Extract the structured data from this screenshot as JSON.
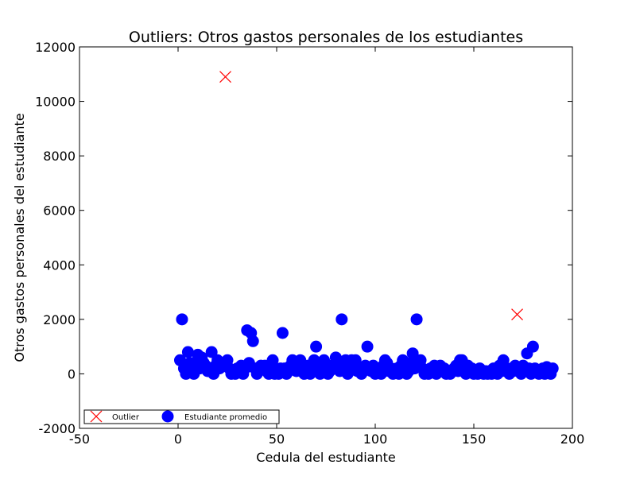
{
  "chart_data": {
    "type": "scatter",
    "title": "Outliers: Otros gastos personales de los estudiantes",
    "xlabel": "Cedula del estudiante",
    "ylabel": "Otros gastos personales del estudiante",
    "xlim": [
      -50,
      200
    ],
    "ylim": [
      -2000,
      12000
    ],
    "xticks": [
      -50,
      0,
      50,
      100,
      150,
      200
    ],
    "yticks": [
      -2000,
      0,
      2000,
      4000,
      6000,
      8000,
      10000,
      12000
    ],
    "grid": false,
    "legend_position": "bottom-left",
    "series": [
      {
        "name": "Outlier",
        "marker": "x",
        "color": "#ff0000",
        "points": [
          [
            24,
            10900
          ],
          [
            172,
            2180
          ]
        ]
      },
      {
        "name": "Estudiante promedio",
        "marker": "circle",
        "color": "#0000ff",
        "points": [
          [
            1,
            500
          ],
          [
            2,
            2000
          ],
          [
            3,
            200
          ],
          [
            4,
            0
          ],
          [
            5,
            800
          ],
          [
            6,
            400
          ],
          [
            7,
            100
          ],
          [
            8,
            0
          ],
          [
            9,
            300
          ],
          [
            10,
            700
          ],
          [
            11,
            200
          ],
          [
            12,
            600
          ],
          [
            13,
            400
          ],
          [
            14,
            300
          ],
          [
            15,
            100
          ],
          [
            16,
            200
          ],
          [
            17,
            800
          ],
          [
            18,
            0
          ],
          [
            19,
            300
          ],
          [
            20,
            500
          ],
          [
            21,
            200
          ],
          [
            22,
            400
          ],
          [
            23,
            300
          ],
          [
            25,
            500
          ],
          [
            26,
            200
          ],
          [
            27,
            0
          ],
          [
            28,
            100
          ],
          [
            29,
            0
          ],
          [
            30,
            200
          ],
          [
            31,
            100
          ],
          [
            32,
            300
          ],
          [
            33,
            0
          ],
          [
            34,
            200
          ],
          [
            35,
            1600
          ],
          [
            36,
            400
          ],
          [
            37,
            1500
          ],
          [
            38,
            1200
          ],
          [
            39,
            200
          ],
          [
            40,
            0
          ],
          [
            41,
            100
          ],
          [
            42,
            300
          ],
          [
            43,
            200
          ],
          [
            44,
            300
          ],
          [
            45,
            100
          ],
          [
            46,
            0
          ],
          [
            47,
            300
          ],
          [
            48,
            500
          ],
          [
            49,
            0
          ],
          [
            50,
            100
          ],
          [
            51,
            0
          ],
          [
            52,
            200
          ],
          [
            53,
            1500
          ],
          [
            54,
            200
          ],
          [
            55,
            0
          ],
          [
            56,
            100
          ],
          [
            57,
            300
          ],
          [
            58,
            500
          ],
          [
            59,
            200
          ],
          [
            60,
            100
          ],
          [
            61,
            300
          ],
          [
            62,
            500
          ],
          [
            63,
            200
          ],
          [
            64,
            0
          ],
          [
            65,
            100
          ],
          [
            66,
            300
          ],
          [
            67,
            0
          ],
          [
            68,
            200
          ],
          [
            69,
            500
          ],
          [
            70,
            1000
          ],
          [
            71,
            200
          ],
          [
            72,
            0
          ],
          [
            73,
            300
          ],
          [
            74,
            500
          ],
          [
            75,
            200
          ],
          [
            76,
            0
          ],
          [
            77,
            100
          ],
          [
            78,
            300
          ],
          [
            79,
            200
          ],
          [
            80,
            600
          ],
          [
            81,
            400
          ],
          [
            82,
            100
          ],
          [
            83,
            2000
          ],
          [
            84,
            300
          ],
          [
            85,
            500
          ],
          [
            86,
            0
          ],
          [
            87,
            100
          ],
          [
            88,
            500
          ],
          [
            89,
            200
          ],
          [
            90,
            500
          ],
          [
            91,
            100
          ],
          [
            92,
            200
          ],
          [
            93,
            0
          ],
          [
            94,
            100
          ],
          [
            95,
            300
          ],
          [
            96,
            1000
          ],
          [
            97,
            200
          ],
          [
            98,
            100
          ],
          [
            99,
            300
          ],
          [
            100,
            0
          ],
          [
            101,
            200
          ],
          [
            102,
            100
          ],
          [
            103,
            0
          ],
          [
            104,
            300
          ],
          [
            105,
            500
          ],
          [
            106,
            400
          ],
          [
            107,
            100
          ],
          [
            108,
            200
          ],
          [
            109,
            0
          ],
          [
            110,
            100
          ],
          [
            111,
            200
          ],
          [
            112,
            0
          ],
          [
            113,
            300
          ],
          [
            114,
            500
          ],
          [
            115,
            200
          ],
          [
            116,
            0
          ],
          [
            117,
            100
          ],
          [
            118,
            400
          ],
          [
            119,
            750
          ],
          [
            120,
            200
          ],
          [
            121,
            2000
          ],
          [
            122,
            300
          ],
          [
            123,
            500
          ],
          [
            124,
            200
          ],
          [
            125,
            0
          ],
          [
            126,
            100
          ],
          [
            127,
            0
          ],
          [
            128,
            200
          ],
          [
            129,
            100
          ],
          [
            130,
            300
          ],
          [
            131,
            0
          ],
          [
            132,
            200
          ],
          [
            133,
            300
          ],
          [
            134,
            100
          ],
          [
            135,
            200
          ],
          [
            136,
            0
          ],
          [
            137,
            100
          ],
          [
            138,
            0
          ],
          [
            139,
            100
          ],
          [
            140,
            200
          ],
          [
            141,
            300
          ],
          [
            142,
            100
          ],
          [
            143,
            500
          ],
          [
            144,
            500
          ],
          [
            145,
            200
          ],
          [
            146,
            0
          ],
          [
            147,
            300
          ],
          [
            148,
            100
          ],
          [
            149,
            200
          ],
          [
            150,
            0
          ],
          [
            151,
            100
          ],
          [
            152,
            0
          ],
          [
            153,
            200
          ],
          [
            154,
            100
          ],
          [
            155,
            0
          ],
          [
            156,
            100
          ],
          [
            157,
            0
          ],
          [
            158,
            100
          ],
          [
            159,
            0
          ],
          [
            160,
            200
          ],
          [
            161,
            100
          ],
          [
            162,
            0
          ],
          [
            163,
            300
          ],
          [
            164,
            100
          ],
          [
            165,
            500
          ],
          [
            166,
            200
          ],
          [
            167,
            100
          ],
          [
            168,
            0
          ],
          [
            169,
            200
          ],
          [
            170,
            100
          ],
          [
            171,
            300
          ],
          [
            173,
            200
          ],
          [
            174,
            0
          ],
          [
            175,
            300
          ],
          [
            176,
            100
          ],
          [
            177,
            750
          ],
          [
            178,
            200
          ],
          [
            179,
            0
          ],
          [
            180,
            1000
          ],
          [
            181,
            200
          ],
          [
            182,
            100
          ],
          [
            183,
            0
          ],
          [
            184,
            100
          ],
          [
            185,
            200
          ],
          [
            186,
            0
          ],
          [
            187,
            250
          ],
          [
            188,
            100
          ],
          [
            189,
            0
          ],
          [
            190,
            200
          ]
        ]
      }
    ]
  }
}
